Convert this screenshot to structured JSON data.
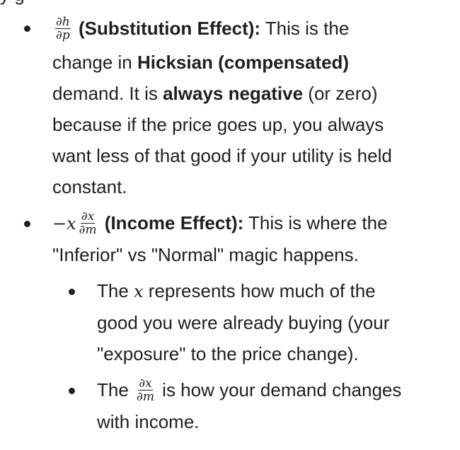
{
  "top_cut_text": "y                                                            g",
  "items": [
    {
      "level": 1,
      "bullet_top": 36,
      "lines": [
        {
          "top": 18,
          "left": 74,
          "segs": [
            {
              "frac": [
                "∂h",
                "∂p"
              ]
            },
            {
              "text": " (Substitution Effect):",
              "bold": true
            },
            {
              "text": " This is the"
            }
          ]
        },
        {
          "top": 66,
          "left": 74,
          "segs": [
            {
              "text": "change in "
            },
            {
              "text": "Hicksian (compensated)",
              "bold": true
            }
          ]
        },
        {
          "top": 110,
          "left": 74,
          "segs": [
            {
              "text": "demand. It is "
            },
            {
              "text": "always negative",
              "bold": true
            },
            {
              "text": " (or zero)"
            }
          ]
        },
        {
          "top": 154,
          "left": 74,
          "segs": [
            {
              "text": "because if the price goes up, you always"
            }
          ]
        },
        {
          "top": 198,
          "left": 74,
          "segs": [
            {
              "text": "want less of that good if your utility is held"
            }
          ]
        },
        {
          "top": 242,
          "left": 74,
          "segs": [
            {
              "text": "constant."
            }
          ]
        }
      ]
    },
    {
      "level": 1,
      "bullet_top": 312,
      "lines": [
        {
          "top": 293,
          "left": 74,
          "segs": [
            {
              "math": "−x"
            },
            {
              "frac": [
                "∂x",
                "∂m"
              ]
            },
            {
              "text": " (Income Effect):",
              "bold": true
            },
            {
              "text": " This is where the"
            }
          ]
        },
        {
          "top": 338,
          "left": 74,
          "segs": [
            {
              "text": "\"Inferior\" vs \"Normal\" magic happens."
            }
          ]
        }
      ]
    },
    {
      "level": 2,
      "bullet_top": 408,
      "lines": [
        {
          "top": 389,
          "left": 137,
          "segs": [
            {
              "text": "The "
            },
            {
              "math": "x"
            },
            {
              "text": " represents how much of the"
            }
          ]
        },
        {
          "top": 434,
          "left": 137,
          "segs": [
            {
              "text": "good you were already buying (your"
            }
          ]
        },
        {
          "top": 478,
          "left": 137,
          "segs": [
            {
              "text": "\"exposure\" to the price change)."
            }
          ]
        }
      ]
    },
    {
      "level": 2,
      "bullet_top": 548,
      "lines": [
        {
          "top": 529,
          "left": 137,
          "segs": [
            {
              "text": "The "
            },
            {
              "frac": [
                "∂x",
                "∂m"
              ]
            },
            {
              "text": " is how your demand changes"
            }
          ]
        },
        {
          "top": 574,
          "left": 137,
          "segs": [
            {
              "text": "with income."
            }
          ]
        }
      ]
    }
  ]
}
